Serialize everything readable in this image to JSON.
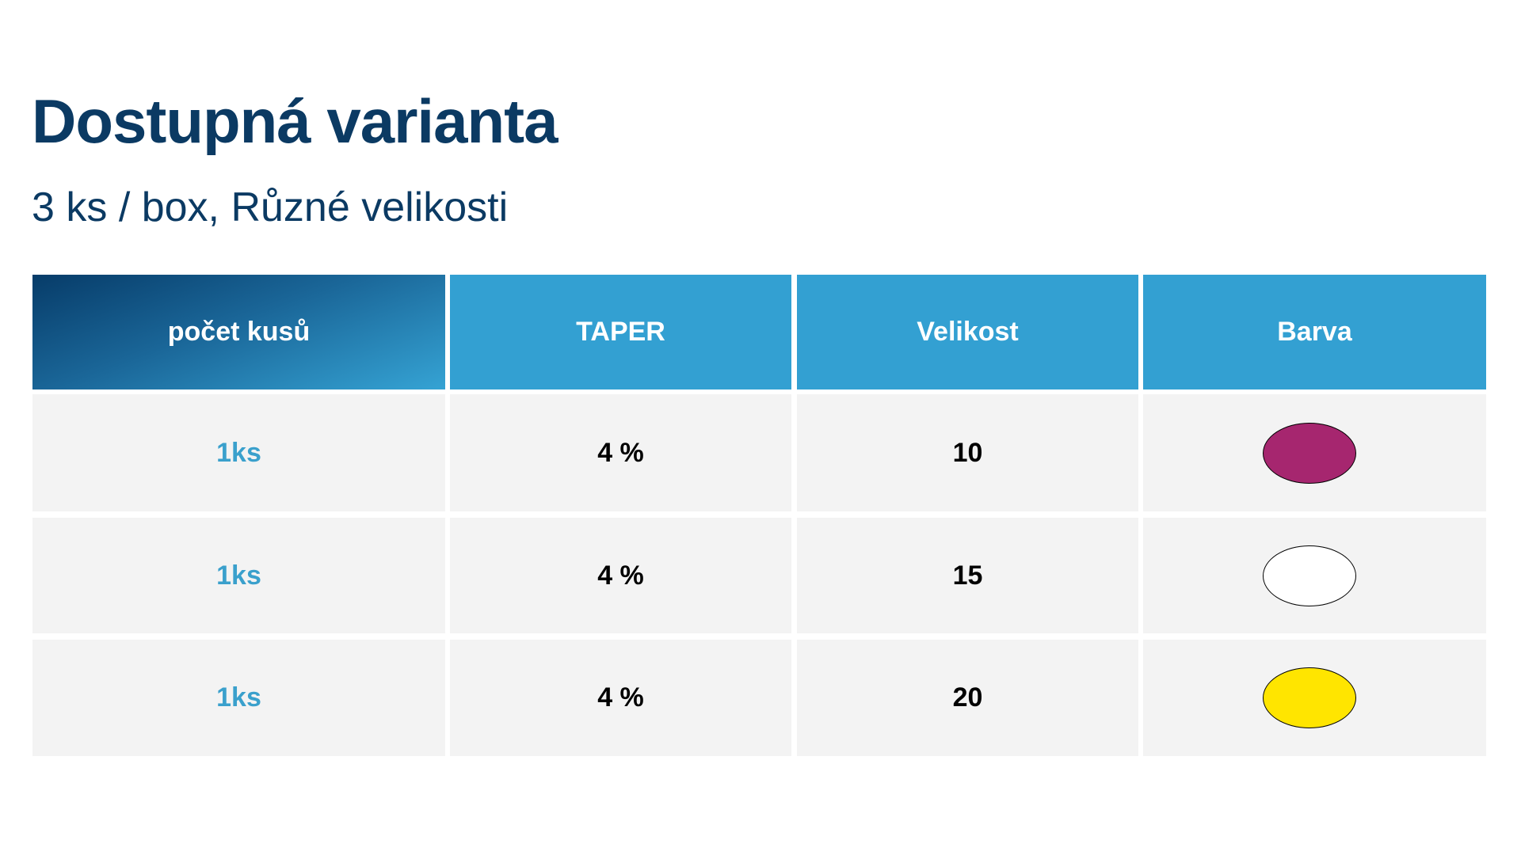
{
  "header": {
    "title": "Dostupná varianta",
    "subtitle": "3 ks / box, Různé velikosti"
  },
  "table": {
    "columns": [
      "počet kusů",
      "TAPER",
      "Velikost",
      "Barva"
    ],
    "rows": [
      {
        "cells": [
          "1ks",
          "4 %",
          "10"
        ],
        "color": "#a6266f"
      },
      {
        "cells": [
          "1ks",
          "4 %",
          "15"
        ],
        "color": "#ffffff"
      },
      {
        "cells": [
          "1ks",
          "4 %",
          "20"
        ],
        "color": "#ffe500"
      }
    ]
  }
}
